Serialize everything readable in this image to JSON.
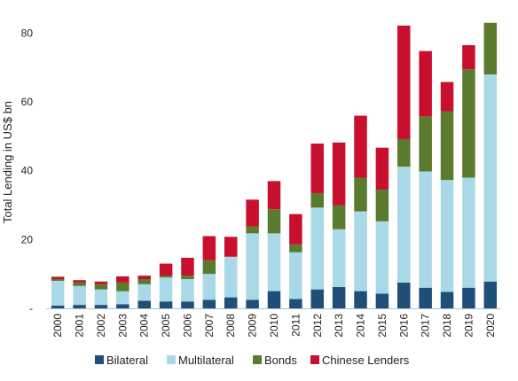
{
  "chart_data": {
    "type": "bar",
    "stacked": true,
    "ylabel": "Total Lending in US$ bn",
    "xlabel": "",
    "ylim": [
      0,
      85
    ],
    "yticks": [
      0,
      20,
      40,
      60,
      80
    ],
    "ytick_labels": [
      "-",
      "20",
      "40",
      "60",
      "80"
    ],
    "grid": false,
    "legend_position": "bottom",
    "categories": [
      "2000",
      "2001",
      "2002",
      "2003",
      "2004",
      "2005",
      "2006",
      "2007",
      "2008",
      "2009",
      "2010",
      "2011",
      "2012",
      "2013",
      "2014",
      "2015",
      "2016",
      "2017",
      "2018",
      "2019",
      "2020"
    ],
    "series": [
      {
        "name": "Bilateral",
        "color": "#1f4e79",
        "values": [
          0.8,
          1.0,
          1.0,
          1.2,
          2.2,
          2.0,
          2.0,
          2.5,
          3.2,
          2.5,
          5.0,
          2.7,
          5.5,
          6.2,
          5.0,
          4.3,
          7.5,
          6.0,
          4.8,
          6.0,
          7.8
        ]
      },
      {
        "name": "Multilateral",
        "color": "#a9d9e6",
        "values": [
          7.2,
          5.5,
          4.5,
          3.8,
          4.8,
          7.0,
          6.5,
          7.5,
          11.8,
          19.3,
          16.8,
          13.6,
          23.8,
          16.8,
          23.2,
          21.0,
          33.7,
          33.8,
          32.5,
          32.0,
          60.2
        ]
      },
      {
        "name": "Bonds",
        "color": "#5a7a2e",
        "values": [
          0.5,
          1.0,
          1.5,
          2.5,
          1.5,
          0.5,
          1.0,
          4.0,
          0.0,
          2.0,
          7.0,
          2.3,
          4.2,
          7.0,
          9.8,
          9.2,
          8.0,
          16.0,
          20.0,
          31.5,
          15.0
        ]
      },
      {
        "name": "Chinese Lenders",
        "color": "#c8102e",
        "values": [
          0.7,
          0.7,
          0.8,
          1.8,
          1.0,
          3.5,
          5.2,
          7.0,
          5.8,
          7.8,
          8.2,
          8.8,
          14.4,
          18.2,
          18.0,
          12.2,
          33.0,
          19.0,
          8.5,
          7.0,
          0.0
        ]
      }
    ]
  }
}
